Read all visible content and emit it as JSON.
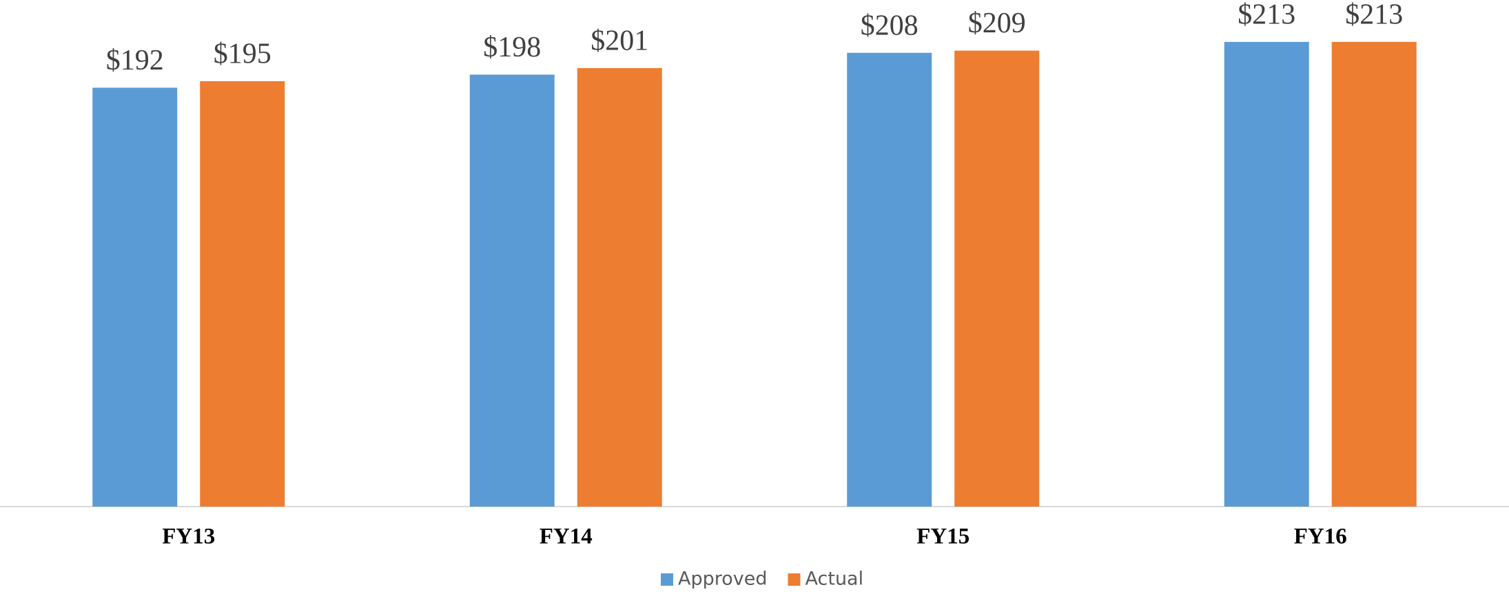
{
  "chart_data": {
    "type": "bar",
    "categories": [
      "FY13",
      "FY14",
      "FY15",
      "FY16"
    ],
    "series": [
      {
        "name": "Approved",
        "color": "#5b9bd5",
        "values": [
          192,
          198,
          208,
          213
        ],
        "value_labels": [
          "$192",
          "$198",
          "$208",
          "$213"
        ]
      },
      {
        "name": "Actual",
        "color": "#ed7d31",
        "values": [
          195,
          201,
          209,
          213
        ],
        "value_labels": [
          "$195",
          "$201",
          "$209",
          "$213"
        ]
      }
    ],
    "ylim": [
      0,
      230
    ],
    "legend": "bottom"
  }
}
